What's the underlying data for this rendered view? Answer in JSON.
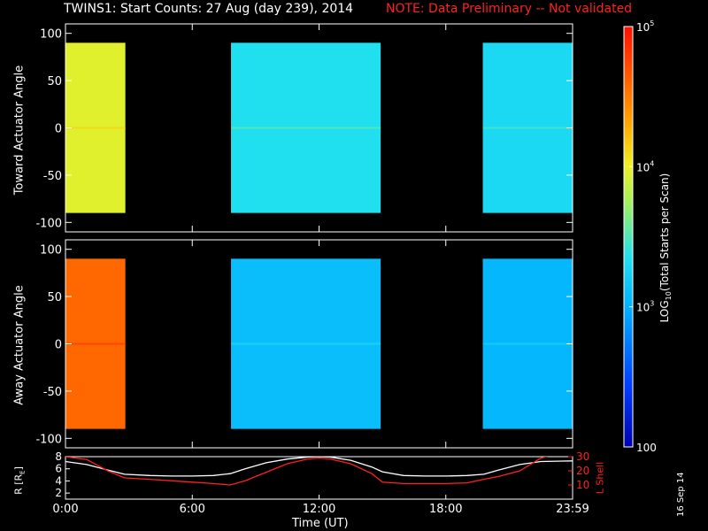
{
  "title": "TWINS1: Start Counts: 27 Aug (day 239), 2014",
  "note": "NOTE: Data Preliminary -- Not validated",
  "stamp": "16 Sep 14",
  "colors": {
    "note": "#ff2020",
    "r_line": "#ffffff",
    "l_line": "#ff2020"
  },
  "chart_data": [
    {
      "type": "heatmap",
      "panel": "top",
      "ylabel": "Toward Actuator Angle",
      "ylim": [
        -110,
        110
      ],
      "yticks": [
        "100",
        "50",
        "0",
        "-50",
        "-100"
      ],
      "xlim_hours": [
        0,
        24
      ],
      "data_intervals": [
        {
          "start": "0:00",
          "end": "2:50",
          "level": 3.95
        },
        {
          "start": "7:50",
          "end": "14:55",
          "level": 3.35
        },
        {
          "start": "19:45",
          "end": "23:59",
          "level": 3.3
        }
      ]
    },
    {
      "type": "heatmap",
      "panel": "middle",
      "ylabel": "Away Actuator Angle",
      "ylim": [
        -110,
        110
      ],
      "yticks": [
        "100",
        "50",
        "0",
        "-50",
        "-100"
      ],
      "xlim_hours": [
        0,
        24
      ],
      "data_intervals": [
        {
          "start": "0:00",
          "end": "2:50",
          "level": 4.6
        },
        {
          "start": "7:50",
          "end": "14:55",
          "level": 3.1
        },
        {
          "start": "19:45",
          "end": "23:59",
          "level": 3.05
        }
      ]
    },
    {
      "type": "line",
      "panel": "bottom",
      "ylabel_left": "R [R",
      "ylabel_left_sub": "E",
      "ylabel_left_end": "]",
      "ylabel_right": "L Shell",
      "ylim_left": [
        1,
        8
      ],
      "ylim_right": [
        0,
        30
      ],
      "yticks_left": [
        "2",
        "4",
        "6",
        "8"
      ],
      "yticks_right": [
        "10",
        "20",
        "30"
      ],
      "xlabel": "Time (UT)",
      "xticks": [
        "0:00",
        "6:00",
        "12:00",
        "18:00",
        "23:59"
      ],
      "series": [
        {
          "axis": "left",
          "x_hours": [
            0,
            1,
            2,
            2.8,
            4,
            5,
            6,
            7,
            7.8,
            8.5,
            9.5,
            10.5,
            11.5,
            12,
            12.5,
            13.5,
            14.5,
            15,
            16,
            17,
            18,
            19,
            19.8,
            20.5,
            21.5,
            22.5,
            24
          ],
          "values": [
            7.2,
            6.7,
            5.8,
            5.1,
            4.9,
            4.8,
            4.8,
            4.9,
            5.2,
            6.0,
            7.0,
            7.6,
            7.95,
            8.0,
            7.95,
            7.4,
            6.3,
            5.5,
            4.9,
            4.8,
            4.8,
            4.9,
            5.1,
            5.8,
            6.7,
            7.2,
            7.3
          ]
        },
        {
          "axis": "right",
          "x_hours": [
            0,
            1,
            2,
            2.8,
            4,
            5,
            6,
            7,
            7.8,
            8.5,
            9.5,
            10.5,
            11.5,
            12,
            12.5,
            13.5,
            14.5,
            15,
            16,
            17,
            18,
            19,
            19.8,
            20.5,
            21.5,
            22.5,
            23.2
          ],
          "values": [
            30,
            28,
            20,
            15,
            14,
            13,
            12,
            11,
            10,
            13,
            19,
            25,
            28.5,
            29,
            28.5,
            25,
            18,
            12,
            11,
            11,
            11,
            11.5,
            14,
            16,
            20,
            29,
            32
          ]
        }
      ]
    },
    {
      "type": "colorbar",
      "label": "LOG",
      "label_sub": "10",
      "label_end": "(Total Starts per Scan)",
      "ticks": [
        {
          "text": "10",
          "sup": "5",
          "log": 5
        },
        {
          "text": "10",
          "sup": "4",
          "log": 4
        },
        {
          "text": "10",
          "sup": "3",
          "log": 3
        },
        {
          "text": "100",
          "sup": "",
          "log": 2
        }
      ]
    }
  ]
}
